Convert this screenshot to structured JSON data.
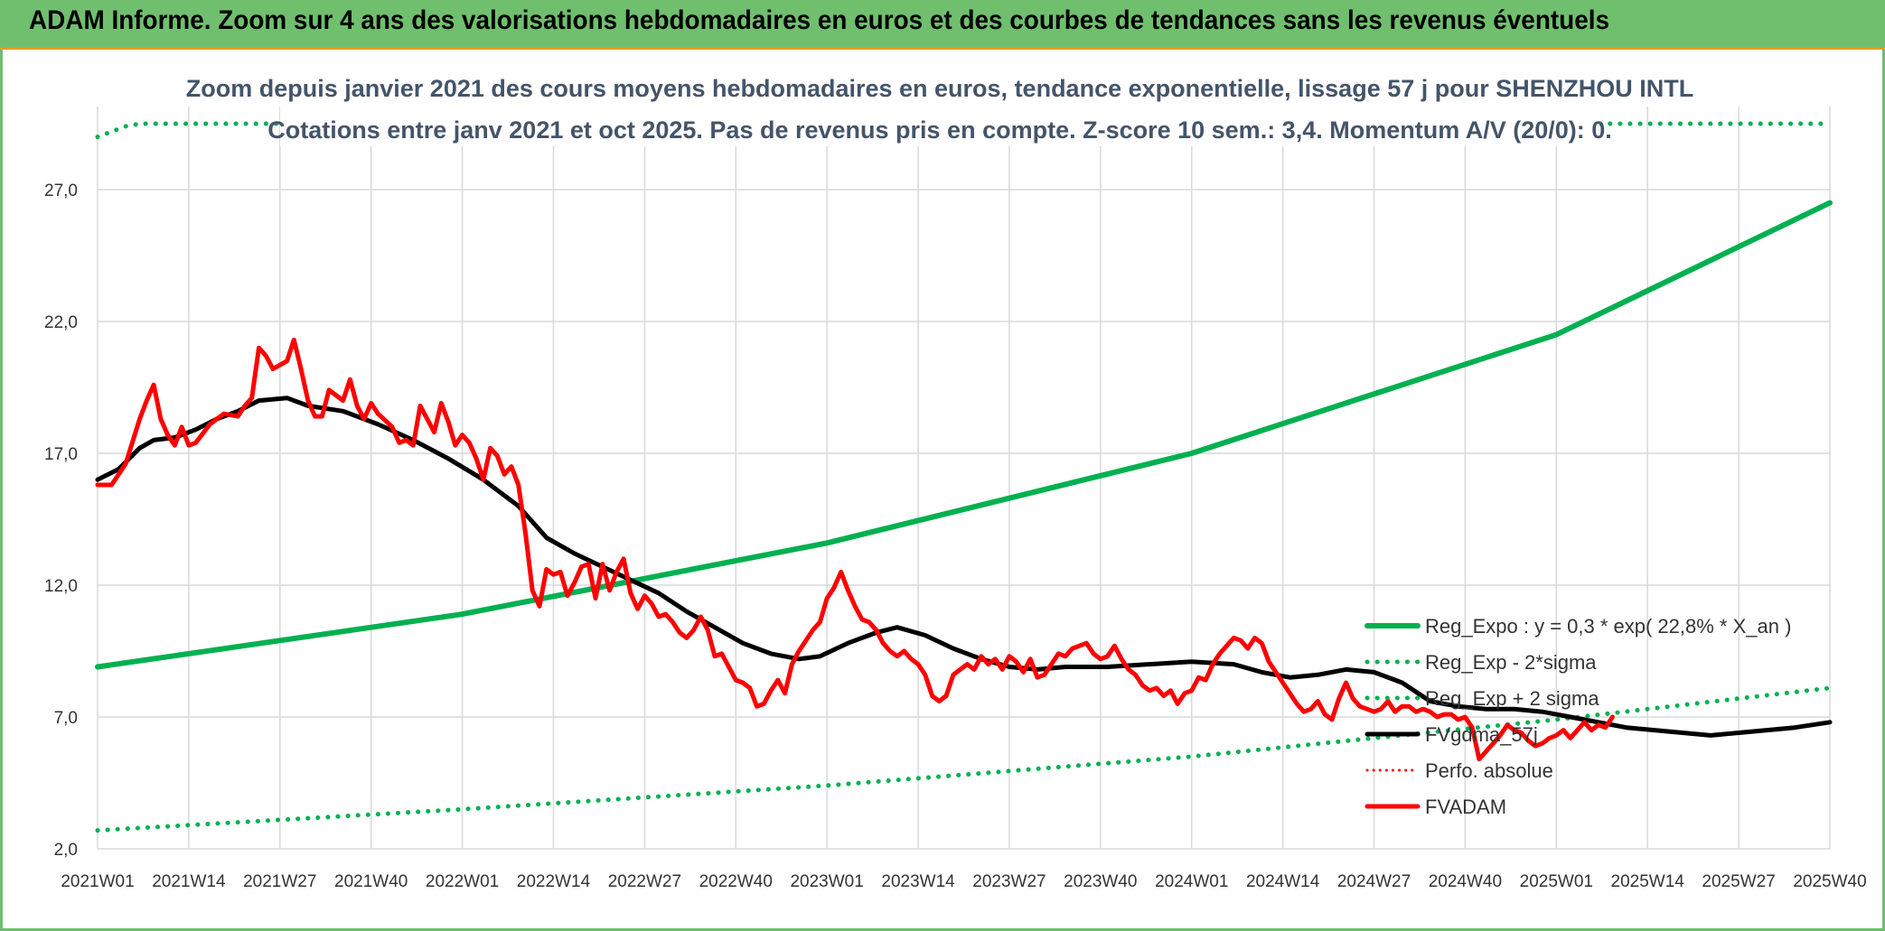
{
  "banner": {
    "title": "ADAM Informe. Zoom sur 4 ans des valorisations hebdomadaires en euros et des courbes de tendances sans les revenus éventuels"
  },
  "chart_data": {
    "type": "line",
    "title": "Zoom depuis janvier 2021 des cours moyens hebdomadaires en euros, tendance exponentielle, lissage 57 j pour SHENZHOU INTL",
    "subtitle": "Cotations entre janv 2021 et oct 2025. Pas de revenus pris en compte. Z-score 10 sem.: 3,4. Momentum A/V (20/0): 0.",
    "xlabel": "",
    "ylabel": "",
    "ylim": [
      2,
      29
    ],
    "yticks": [
      2,
      7,
      12,
      17,
      22,
      27
    ],
    "ytick_labels": [
      "2,0",
      "7,0",
      "12,0",
      "17,0",
      "22,0",
      "27,0"
    ],
    "xticks": [
      "2021W01",
      "2021W14",
      "2021W27",
      "2021W40",
      "2022W01",
      "2022W14",
      "2022W27",
      "2022W40",
      "2023W01",
      "2023W14",
      "2023W27",
      "2023W40",
      "2024W01",
      "2024W14",
      "2024W27",
      "2024W40",
      "2025W01",
      "2025W14",
      "2025W27",
      "2025W40"
    ],
    "week_index_range": [
      0,
      247
    ],
    "grid": true,
    "legend_position": "bottom-right",
    "series": [
      {
        "name": "Reg_Expo : y = 0,3 * exp( 22,8% *  X_an )",
        "color": "#00b050",
        "style": "solid",
        "keypoints": [
          [
            0,
            8.9
          ],
          [
            52,
            10.9
          ],
          [
            104,
            13.6
          ],
          [
            156,
            17.0
          ],
          [
            208,
            21.5
          ],
          [
            247,
            26.5
          ]
        ]
      },
      {
        "name": "Reg_Exp - 2*sigma",
        "color": "#00b050",
        "style": "dotted",
        "keypoints": [
          [
            0,
            2.7
          ],
          [
            52,
            3.5
          ],
          [
            104,
            4.4
          ],
          [
            156,
            5.5
          ],
          [
            208,
            6.9
          ],
          [
            247,
            8.1
          ]
        ]
      },
      {
        "name": "Reg_Exp + 2 sigma",
        "color": "#00b050",
        "style": "dotted",
        "keypoints": [
          [
            0,
            29.0
          ],
          [
            4,
            29.4
          ],
          [
            6,
            29.5
          ],
          [
            247,
            29.5
          ]
        ]
      },
      {
        "name": "FVgdma_57j",
        "color": "#000000",
        "style": "solid",
        "keypoints": [
          [
            0,
            16.0
          ],
          [
            3,
            16.4
          ],
          [
            6,
            17.2
          ],
          [
            8,
            17.5
          ],
          [
            11,
            17.6
          ],
          [
            14,
            17.9
          ],
          [
            17,
            18.3
          ],
          [
            20,
            18.6
          ],
          [
            23,
            19.0
          ],
          [
            27,
            19.1
          ],
          [
            30,
            18.8
          ],
          [
            35,
            18.6
          ],
          [
            40,
            18.1
          ],
          [
            45,
            17.5
          ],
          [
            50,
            16.8
          ],
          [
            55,
            16.0
          ],
          [
            60,
            15.0
          ],
          [
            64,
            13.8
          ],
          [
            68,
            13.2
          ],
          [
            72,
            12.7
          ],
          [
            76,
            12.2
          ],
          [
            80,
            11.7
          ],
          [
            84,
            11.0
          ],
          [
            88,
            10.4
          ],
          [
            92,
            9.8
          ],
          [
            96,
            9.4
          ],
          [
            100,
            9.2
          ],
          [
            103,
            9.3
          ],
          [
            107,
            9.8
          ],
          [
            111,
            10.2
          ],
          [
            114,
            10.4
          ],
          [
            118,
            10.1
          ],
          [
            122,
            9.6
          ],
          [
            126,
            9.2
          ],
          [
            130,
            8.9
          ],
          [
            134,
            8.8
          ],
          [
            138,
            8.9
          ],
          [
            144,
            8.9
          ],
          [
            150,
            9.0
          ],
          [
            156,
            9.1
          ],
          [
            162,
            9.0
          ],
          [
            166,
            8.7
          ],
          [
            170,
            8.5
          ],
          [
            174,
            8.6
          ],
          [
            178,
            8.8
          ],
          [
            182,
            8.7
          ],
          [
            186,
            8.3
          ],
          [
            190,
            7.6
          ],
          [
            194,
            7.4
          ],
          [
            198,
            7.3
          ],
          [
            202,
            7.3
          ],
          [
            206,
            7.2
          ],
          [
            210,
            7.0
          ],
          [
            214,
            6.8
          ],
          [
            218,
            6.6
          ],
          [
            222,
            6.5
          ],
          [
            226,
            6.4
          ],
          [
            230,
            6.3
          ],
          [
            234,
            6.4
          ],
          [
            238,
            6.5
          ],
          [
            242,
            6.6
          ],
          [
            247,
            6.8
          ]
        ]
      },
      {
        "name": "Perfo. absolue",
        "color": "#ff0000",
        "style": "dotted",
        "keypoints": []
      },
      {
        "name": "FVADAM",
        "color": "#ff0000",
        "style": "solid",
        "keypoints": [
          [
            0,
            15.8
          ],
          [
            2,
            15.8
          ],
          [
            4,
            16.6
          ],
          [
            6,
            18.3
          ],
          [
            7,
            19.0
          ],
          [
            8,
            19.6
          ],
          [
            9,
            18.3
          ],
          [
            10,
            17.7
          ],
          [
            11,
            17.3
          ],
          [
            12,
            18.0
          ],
          [
            13,
            17.3
          ],
          [
            14,
            17.4
          ],
          [
            16,
            18.1
          ],
          [
            18,
            18.5
          ],
          [
            20,
            18.4
          ],
          [
            21,
            18.8
          ],
          [
            22,
            19.1
          ],
          [
            23,
            21.0
          ],
          [
            24,
            20.7
          ],
          [
            25,
            20.2
          ],
          [
            27,
            20.5
          ],
          [
            28,
            21.3
          ],
          [
            29,
            20.2
          ],
          [
            30,
            19.0
          ],
          [
            31,
            18.4
          ],
          [
            32,
            18.4
          ],
          [
            33,
            19.4
          ],
          [
            34,
            19.2
          ],
          [
            35,
            19.0
          ],
          [
            36,
            19.8
          ],
          [
            37,
            18.8
          ],
          [
            38,
            18.3
          ],
          [
            39,
            18.9
          ],
          [
            40,
            18.5
          ],
          [
            42,
            18.0
          ],
          [
            43,
            17.4
          ],
          [
            44,
            17.5
          ],
          [
            45,
            17.3
          ],
          [
            46,
            18.8
          ],
          [
            47,
            18.3
          ],
          [
            48,
            17.8
          ],
          [
            49,
            18.9
          ],
          [
            50,
            18.2
          ],
          [
            51,
            17.3
          ],
          [
            52,
            17.7
          ],
          [
            53,
            17.4
          ],
          [
            54,
            16.8
          ],
          [
            55,
            16.0
          ],
          [
            56,
            17.2
          ],
          [
            57,
            16.9
          ],
          [
            58,
            16.2
          ],
          [
            59,
            16.5
          ],
          [
            60,
            15.8
          ],
          [
            61,
            14.0
          ],
          [
            62,
            11.8
          ],
          [
            63,
            11.2
          ],
          [
            64,
            12.6
          ],
          [
            65,
            12.4
          ],
          [
            66,
            12.5
          ],
          [
            67,
            11.6
          ],
          [
            68,
            12.1
          ],
          [
            69,
            12.7
          ],
          [
            70,
            12.8
          ],
          [
            71,
            11.5
          ],
          [
            72,
            12.8
          ],
          [
            73,
            11.8
          ],
          [
            74,
            12.5
          ],
          [
            75,
            13.0
          ],
          [
            76,
            11.7
          ],
          [
            77,
            11.1
          ],
          [
            78,
            11.6
          ],
          [
            79,
            11.3
          ],
          [
            80,
            10.8
          ],
          [
            81,
            10.9
          ],
          [
            82,
            10.6
          ],
          [
            83,
            10.2
          ],
          [
            84,
            10.0
          ],
          [
            85,
            10.3
          ],
          [
            86,
            10.8
          ],
          [
            87,
            10.3
          ],
          [
            88,
            9.3
          ],
          [
            89,
            9.4
          ],
          [
            90,
            8.9
          ],
          [
            91,
            8.4
          ],
          [
            92,
            8.3
          ],
          [
            93,
            8.1
          ],
          [
            94,
            7.4
          ],
          [
            95,
            7.5
          ],
          [
            96,
            8.0
          ],
          [
            97,
            8.4
          ],
          [
            98,
            7.9
          ],
          [
            99,
            9.0
          ],
          [
            100,
            9.5
          ],
          [
            101,
            9.9
          ],
          [
            102,
            10.3
          ],
          [
            103,
            10.6
          ],
          [
            104,
            11.5
          ],
          [
            105,
            11.9
          ],
          [
            106,
            12.5
          ],
          [
            107,
            11.8
          ],
          [
            108,
            11.2
          ],
          [
            109,
            10.7
          ],
          [
            110,
            10.6
          ],
          [
            111,
            10.3
          ],
          [
            112,
            9.8
          ],
          [
            113,
            9.5
          ],
          [
            114,
            9.3
          ],
          [
            115,
            9.5
          ],
          [
            116,
            9.2
          ],
          [
            117,
            9.0
          ],
          [
            118,
            8.6
          ],
          [
            119,
            7.8
          ],
          [
            120,
            7.6
          ],
          [
            121,
            7.8
          ],
          [
            122,
            8.6
          ],
          [
            123,
            8.8
          ],
          [
            124,
            9.0
          ],
          [
            125,
            8.8
          ],
          [
            126,
            9.3
          ],
          [
            127,
            9.0
          ],
          [
            128,
            9.2
          ],
          [
            129,
            8.8
          ],
          [
            130,
            9.3
          ],
          [
            131,
            9.1
          ],
          [
            132,
            8.7
          ],
          [
            133,
            9.2
          ],
          [
            134,
            8.5
          ],
          [
            135,
            8.6
          ],
          [
            136,
            9.0
          ],
          [
            137,
            9.4
          ],
          [
            138,
            9.3
          ],
          [
            139,
            9.6
          ],
          [
            140,
            9.7
          ],
          [
            141,
            9.8
          ],
          [
            142,
            9.4
          ],
          [
            143,
            9.2
          ],
          [
            144,
            9.3
          ],
          [
            145,
            9.7
          ],
          [
            146,
            9.2
          ],
          [
            147,
            8.8
          ],
          [
            148,
            8.6
          ],
          [
            149,
            8.2
          ],
          [
            150,
            8.0
          ],
          [
            151,
            8.1
          ],
          [
            152,
            7.8
          ],
          [
            153,
            8.0
          ],
          [
            154,
            7.5
          ],
          [
            155,
            7.9
          ],
          [
            156,
            8.0
          ],
          [
            157,
            8.5
          ],
          [
            158,
            8.4
          ],
          [
            159,
            9.0
          ],
          [
            160,
            9.4
          ],
          [
            161,
            9.7
          ],
          [
            162,
            10.0
          ],
          [
            163,
            9.9
          ],
          [
            164,
            9.6
          ],
          [
            165,
            10.0
          ],
          [
            166,
            9.8
          ],
          [
            167,
            9.1
          ],
          [
            168,
            8.7
          ],
          [
            169,
            8.3
          ],
          [
            170,
            7.9
          ],
          [
            171,
            7.5
          ],
          [
            172,
            7.2
          ],
          [
            173,
            7.3
          ],
          [
            174,
            7.6
          ],
          [
            175,
            7.1
          ],
          [
            176,
            6.9
          ],
          [
            177,
            7.7
          ],
          [
            178,
            8.3
          ],
          [
            179,
            7.7
          ],
          [
            180,
            7.4
          ],
          [
            181,
            7.3
          ],
          [
            182,
            7.2
          ],
          [
            183,
            7.3
          ],
          [
            184,
            7.6
          ],
          [
            185,
            7.2
          ],
          [
            186,
            7.4
          ],
          [
            187,
            7.4
          ],
          [
            188,
            7.2
          ],
          [
            189,
            7.3
          ],
          [
            190,
            7.2
          ],
          [
            191,
            7.0
          ],
          [
            192,
            7.1
          ],
          [
            193,
            7.1
          ],
          [
            194,
            6.9
          ],
          [
            195,
            7.0
          ],
          [
            196,
            6.6
          ],
          [
            197,
            5.4
          ],
          [
            198,
            5.7
          ],
          [
            199,
            6.0
          ],
          [
            200,
            6.3
          ],
          [
            201,
            6.7
          ],
          [
            202,
            6.5
          ],
          [
            203,
            6.4
          ],
          [
            204,
            6.1
          ],
          [
            205,
            5.9
          ],
          [
            206,
            6.0
          ],
          [
            207,
            6.2
          ],
          [
            208,
            6.3
          ],
          [
            209,
            6.5
          ],
          [
            210,
            6.2
          ],
          [
            211,
            6.5
          ],
          [
            212,
            6.8
          ],
          [
            213,
            6.5
          ],
          [
            214,
            6.7
          ],
          [
            215,
            6.6
          ],
          [
            216,
            7.0
          ]
        ]
      }
    ]
  }
}
